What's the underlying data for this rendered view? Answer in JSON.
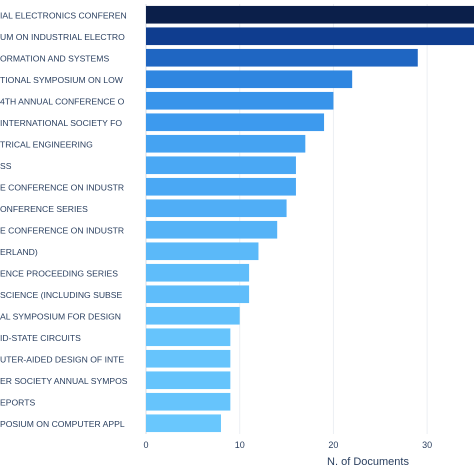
{
  "chart_data": {
    "type": "bar",
    "orientation": "horizontal",
    "title": "",
    "xlabel": "N. of Documents",
    "ylabel": "",
    "xlim": [
      0,
      35
    ],
    "x_ticks": [
      0,
      10,
      20,
      30
    ],
    "grid": true,
    "categories": [
      "IAL ELECTRONICS CONFEREN",
      "UM ON INDUSTRIAL ELECTRO",
      "ORMATION AND SYSTEMS",
      "TIONAL SYMPOSIUM ON LOW",
      "4TH ANNUAL CONFERENCE O",
      "INTERNATIONAL SOCIETY FO",
      "TRICAL ENGINEERING",
      "SS",
      "E CONFERENCE ON INDUSTR",
      "ONFERENCE SERIES",
      "E CONFERENCE ON INDUSTR",
      "ERLAND)",
      "ENCE PROCEEDING SERIES",
      "SCIENCE (INCLUDING SUBSE",
      "AL SYMPOSIUM FOR DESIGN",
      "ID-STATE CIRCUITS",
      "UTER-AIDED DESIGN OF INTE",
      "ER SOCIETY ANNUAL SYMPOS",
      "EPORTS",
      "POSIUM ON COMPUTER APPL"
    ],
    "values": [
      35,
      35,
      29,
      22,
      20,
      19,
      17,
      16,
      16,
      15,
      14,
      12,
      11,
      11,
      10,
      9,
      9,
      9,
      9,
      8
    ],
    "colors": [
      "#0b1f4a",
      "#0f3d8f",
      "#1f66c2",
      "#2f86e0",
      "#3894ea",
      "#3d9aee",
      "#45a3f2",
      "#4aa8f4",
      "#4aa8f4",
      "#50aef6",
      "#55b3f7",
      "#5bb9f9",
      "#5fbdfa",
      "#5fbdfa",
      "#62c0fb",
      "#66c4fc",
      "#66c4fc",
      "#66c4fc",
      "#66c4fc",
      "#69c7fd"
    ]
  }
}
